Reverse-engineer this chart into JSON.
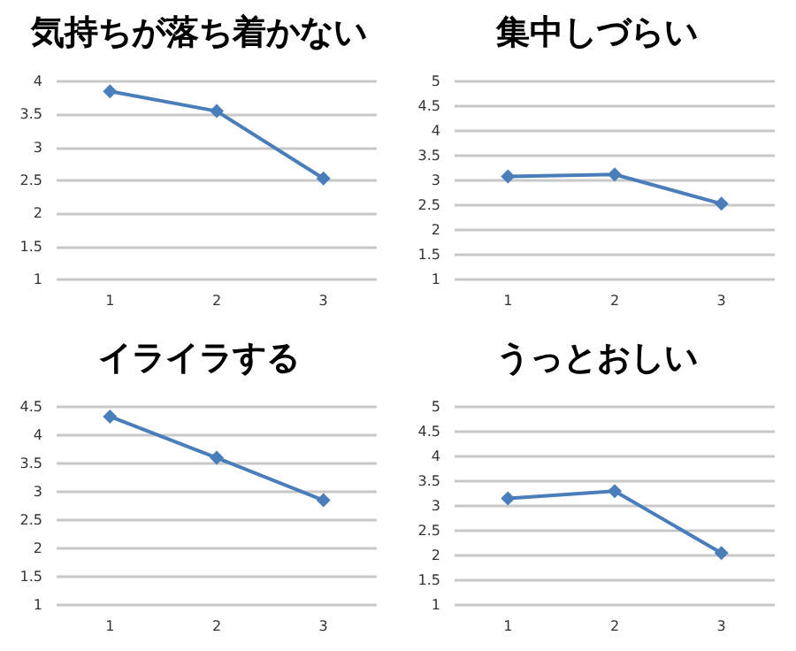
{
  "chart_data": [
    {
      "type": "line",
      "title": "気持ちが落ち着かない",
      "categories": [
        "1",
        "2",
        "3"
      ],
      "series": [
        {
          "color": "#4a7ebb",
          "values": [
            3.85,
            3.55,
            2.53
          ]
        }
      ],
      "ylim": [
        1,
        4
      ],
      "yticks": [
        1,
        1.5,
        2,
        2.5,
        3,
        3.5,
        4
      ],
      "grid": "y",
      "marker": "diamond"
    },
    {
      "type": "line",
      "title": "集中しづらい",
      "categories": [
        "1",
        "2",
        "3"
      ],
      "series": [
        {
          "color": "#4a7ebb",
          "values": [
            3.08,
            3.12,
            2.53
          ]
        }
      ],
      "ylim": [
        1,
        5
      ],
      "yticks": [
        1,
        1.5,
        2,
        2.5,
        3,
        3.5,
        4,
        4.5,
        5
      ],
      "grid": "y",
      "marker": "diamond"
    },
    {
      "type": "line",
      "title": "イライラする",
      "categories": [
        "1",
        "2",
        "3"
      ],
      "series": [
        {
          "color": "#4a7ebb",
          "values": [
            4.33,
            3.6,
            2.85
          ]
        }
      ],
      "ylim": [
        1,
        4.5
      ],
      "yticks": [
        1,
        1.5,
        2,
        2.5,
        3,
        3.5,
        4,
        4.5
      ],
      "grid": "y",
      "marker": "diamond"
    },
    {
      "type": "line",
      "title": "うっとおしい",
      "categories": [
        "1",
        "2",
        "3"
      ],
      "series": [
        {
          "color": "#4a7ebb",
          "values": [
            3.15,
            3.3,
            2.05
          ]
        }
      ],
      "ylim": [
        1,
        5
      ],
      "yticks": [
        1,
        1.5,
        2,
        2.5,
        3,
        3.5,
        4,
        4.5,
        5
      ],
      "grid": "y",
      "marker": "diamond"
    }
  ]
}
